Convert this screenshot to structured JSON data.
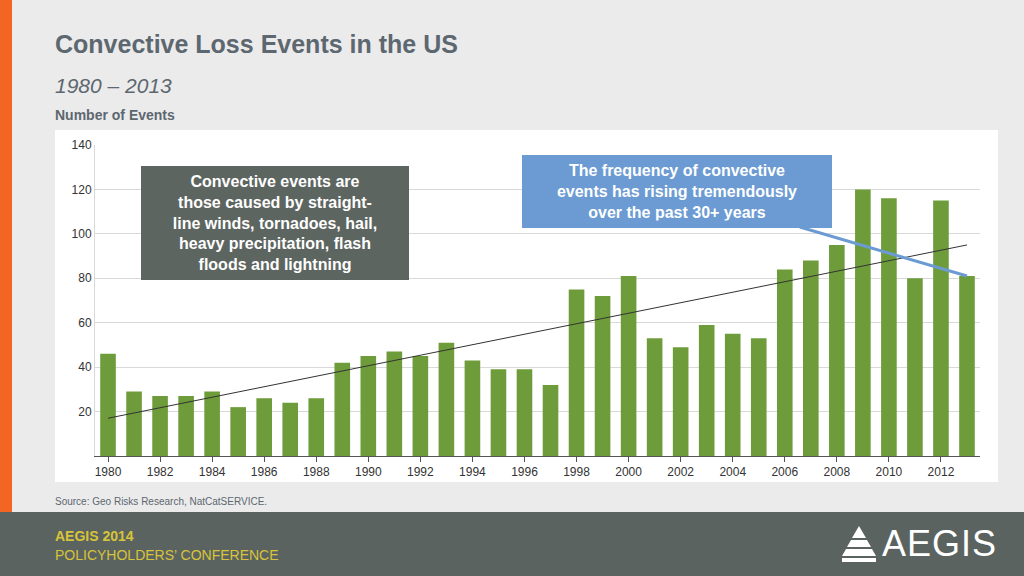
{
  "chart_data": {
    "type": "bar",
    "title": "Convective Loss Events in the US",
    "subtitle": "1980 – 2013",
    "y_label": "Number of Events",
    "x": [
      1980,
      1981,
      1982,
      1983,
      1984,
      1985,
      1986,
      1987,
      1988,
      1989,
      1990,
      1991,
      1992,
      1993,
      1994,
      1995,
      1996,
      1997,
      1998,
      1999,
      2000,
      2001,
      2002,
      2003,
      2004,
      2005,
      2006,
      2007,
      2008,
      2009,
      2010,
      2011,
      2012,
      2013
    ],
    "values": [
      46,
      29,
      27,
      27,
      29,
      22,
      26,
      24,
      26,
      42,
      45,
      47,
      45,
      51,
      43,
      39,
      39,
      32,
      75,
      72,
      81,
      53,
      49,
      59,
      55,
      53,
      84,
      88,
      95,
      120,
      116,
      80,
      115,
      81
    ],
    "color": "#6e9c3b",
    "trendline": {
      "type": "line",
      "x": [
        1980,
        2013
      ],
      "values": [
        17,
        95
      ],
      "color": "#333333"
    },
    "xlim": [
      1979.5,
      2013.5
    ],
    "xticks": [
      1980,
      1982,
      1984,
      1986,
      1988,
      1990,
      1992,
      1994,
      1996,
      1998,
      2000,
      2002,
      2004,
      2006,
      2008,
      2010,
      2012
    ],
    "ylim": [
      0,
      140
    ],
    "yticks": [
      20,
      40,
      60,
      80,
      100,
      120,
      140
    ],
    "grid": true,
    "annotations": [
      {
        "text": [
          "Convective events are",
          "those caused by straight-",
          "line winds, tornadoes, hail,",
          "heavy precipitation, flash",
          "floods and lightning"
        ],
        "color": "#5d6560"
      },
      {
        "text": [
          "The frequency of convective",
          "events has rising tremendously",
          "over the past 30+ years"
        ],
        "color": "#6b9bd2"
      }
    ],
    "source": "Source: Geo Risks Research, NatCatSERVICE."
  },
  "footer": {
    "lines": [
      "AEGIS 2014",
      "POLICYHOLDERS’ CONFERENCE"
    ],
    "logo": "AEGIS"
  }
}
